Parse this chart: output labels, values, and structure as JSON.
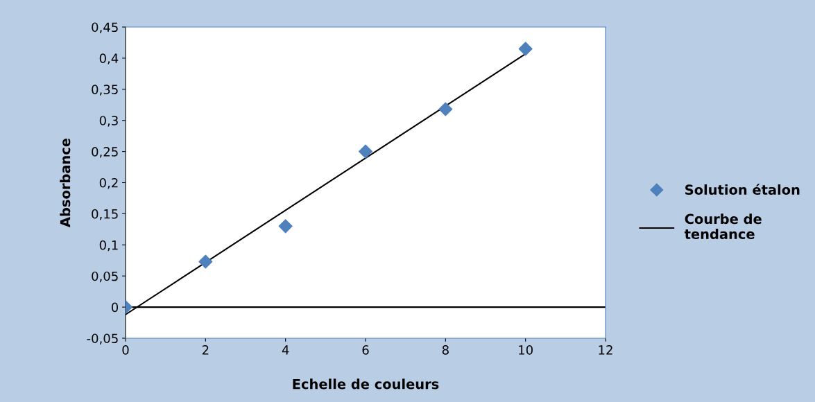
{
  "chart_data": {
    "type": "scatter",
    "xlabel": "Echelle de couleurs",
    "ylabel": "Absorbance",
    "x": [
      0,
      2,
      4,
      6,
      8,
      10
    ],
    "series": [
      {
        "name": "Solution étalon",
        "color": "#4f81bd",
        "values": [
          0,
          0.073,
          0.13,
          0.25,
          0.318,
          0.415
        ],
        "marker": "diamond"
      },
      {
        "name": "Courbe de tendance",
        "type": "line",
        "color": "#000000",
        "x": [
          0,
          10
        ],
        "values": [
          -0.012,
          0.407
        ],
        "marker": "none",
        "line_style": "solid"
      }
    ],
    "xlim": [
      0,
      12
    ],
    "xticks": [
      0,
      2,
      4,
      6,
      8,
      10,
      12
    ],
    "ylim": [
      -0.05,
      0.45
    ],
    "yticks": [
      {
        "value": -0.05,
        "label": "-0,05"
      },
      0,
      {
        "value": 0.05,
        "label": "0,05"
      },
      {
        "value": 0.1,
        "label": "0,1"
      },
      {
        "value": 0.15,
        "label": "0,15"
      },
      {
        "value": 0.2,
        "label": "0,2"
      },
      {
        "value": 0.25,
        "label": "0,25"
      },
      {
        "value": 0.3,
        "label": "0,3"
      },
      {
        "value": 0.35,
        "label": "0,35"
      },
      {
        "value": 0.4,
        "label": "0,4"
      },
      {
        "value": 0.45,
        "label": "0,45"
      }
    ],
    "ref_lines": [
      {
        "axis": "y",
        "value": 0,
        "color": "#000000"
      }
    ],
    "legend": "right"
  }
}
